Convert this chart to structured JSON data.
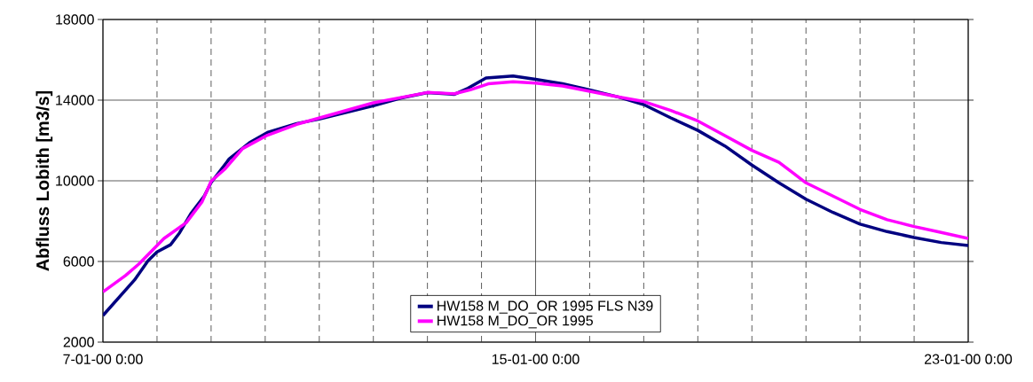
{
  "chart_data": {
    "type": "line",
    "ylabel": "Abfluss Lobith [m3/s]",
    "xlim": [
      "2000-01-07T00:00",
      "2000-01-23T00:00"
    ],
    "ylim": [
      2000,
      18000
    ],
    "yticks": [
      2000,
      6000,
      10000,
      14000,
      18000
    ],
    "xticks": [
      {
        "value": "2000-01-07T00:00",
        "label": "7-01-00 0:00"
      },
      {
        "value": "2000-01-08T00:00",
        "label": null
      },
      {
        "value": "2000-01-09T00:00",
        "label": null
      },
      {
        "value": "2000-01-10T00:00",
        "label": null
      },
      {
        "value": "2000-01-11T00:00",
        "label": null
      },
      {
        "value": "2000-01-12T00:00",
        "label": null
      },
      {
        "value": "2000-01-13T00:00",
        "label": null
      },
      {
        "value": "2000-01-14T00:00",
        "label": null
      },
      {
        "value": "2000-01-15T00:00",
        "label": "15-01-00 0:00"
      },
      {
        "value": "2000-01-16T00:00",
        "label": null
      },
      {
        "value": "2000-01-17T00:00",
        "label": null
      },
      {
        "value": "2000-01-18T00:00",
        "label": null
      },
      {
        "value": "2000-01-19T00:00",
        "label": null
      },
      {
        "value": "2000-01-20T00:00",
        "label": null
      },
      {
        "value": "2000-01-21T00:00",
        "label": null
      },
      {
        "value": "2000-01-22T00:00",
        "label": null
      },
      {
        "value": "2000-01-23T00:00",
        "label": "23-01-00 0:00"
      }
    ],
    "grid": true,
    "legend": "bottom",
    "marker": "none",
    "line_style": "solid",
    "series": [
      {
        "name": "HW158 M_DO_OR 1995 FLS N39",
        "color": "#000080",
        "x": [
          "2000-01-07T00:00",
          "2000-01-07T07:00",
          "2000-01-07T14:00",
          "2000-01-07T20:00",
          "2000-01-08T00:00",
          "2000-01-08T06:00",
          "2000-01-08T10:00",
          "2000-01-08T15:00",
          "2000-01-08T21:00",
          "2000-01-09T00:00",
          "2000-01-09T08:00",
          "2000-01-09T17:00",
          "2000-01-10T01:00",
          "2000-01-10T14:00",
          "2000-01-11T00:00",
          "2000-01-11T16:00",
          "2000-01-12T00:00",
          "2000-01-12T12:00",
          "2000-01-13T00:00",
          "2000-01-13T12:00",
          "2000-01-13T18:00",
          "2000-01-14T02:00",
          "2000-01-14T14:00",
          "2000-01-15T00:00",
          "2000-01-15T12:00",
          "2000-01-16T00:00",
          "2000-01-16T13:00",
          "2000-01-17T00:00",
          "2000-01-17T12:00",
          "2000-01-18T00:00",
          "2000-01-18T12:00",
          "2000-01-19T00:00",
          "2000-01-19T12:00",
          "2000-01-20T00:00",
          "2000-01-20T12:00",
          "2000-01-21T00:00",
          "2000-01-21T12:00",
          "2000-01-22T00:00",
          "2000-01-22T12:00",
          "2000-01-23T00:00"
        ],
        "values": [
          3320,
          4200,
          5080,
          6030,
          6470,
          6830,
          7420,
          8370,
          9250,
          9910,
          11080,
          11890,
          12400,
          12840,
          13060,
          13500,
          13720,
          14100,
          14370,
          14290,
          14590,
          15100,
          15200,
          15030,
          14810,
          14510,
          14150,
          13780,
          13120,
          12500,
          11730,
          10780,
          9900,
          9090,
          8430,
          7850,
          7480,
          7190,
          6940,
          6790
        ]
      },
      {
        "name": "HW158 M_DO_OR 1995",
        "color": "#ff00ff",
        "x": [
          "2000-01-07T00:00",
          "2000-01-07T10:00",
          "2000-01-07T16:00",
          "2000-01-08T03:00",
          "2000-01-08T13:00",
          "2000-01-08T20:00",
          "2000-01-09T00:00",
          "2000-01-09T06:00",
          "2000-01-09T14:00",
          "2000-01-10T01:00",
          "2000-01-10T14:00",
          "2000-01-11T03:00",
          "2000-01-12T00:00",
          "2000-01-13T00:00",
          "2000-01-13T12:00",
          "2000-01-13T19:00",
          "2000-01-14T03:00",
          "2000-01-14T14:00",
          "2000-01-15T00:00",
          "2000-01-15T12:00",
          "2000-01-16T00:00",
          "2000-01-16T13:00",
          "2000-01-17T00:00",
          "2000-01-17T12:00",
          "2000-01-18T00:00",
          "2000-01-18T12:00",
          "2000-01-19T00:00",
          "2000-01-19T12:00",
          "2000-01-19T18:00",
          "2000-01-20T00:00",
          "2000-01-20T12:00",
          "2000-01-21T00:00",
          "2000-01-21T12:00",
          "2000-01-22T00:00",
          "2000-01-22T12:00",
          "2000-01-23T00:00"
        ],
        "values": [
          4490,
          5300,
          5880,
          7130,
          7930,
          8960,
          9980,
          10570,
          11600,
          12260,
          12800,
          13210,
          13870,
          14380,
          14320,
          14510,
          14810,
          14910,
          14850,
          14700,
          14440,
          14150,
          13930,
          13490,
          12970,
          12240,
          11510,
          10920,
          10410,
          9900,
          9240,
          8580,
          8070,
          7730,
          7440,
          7140
        ]
      }
    ]
  }
}
